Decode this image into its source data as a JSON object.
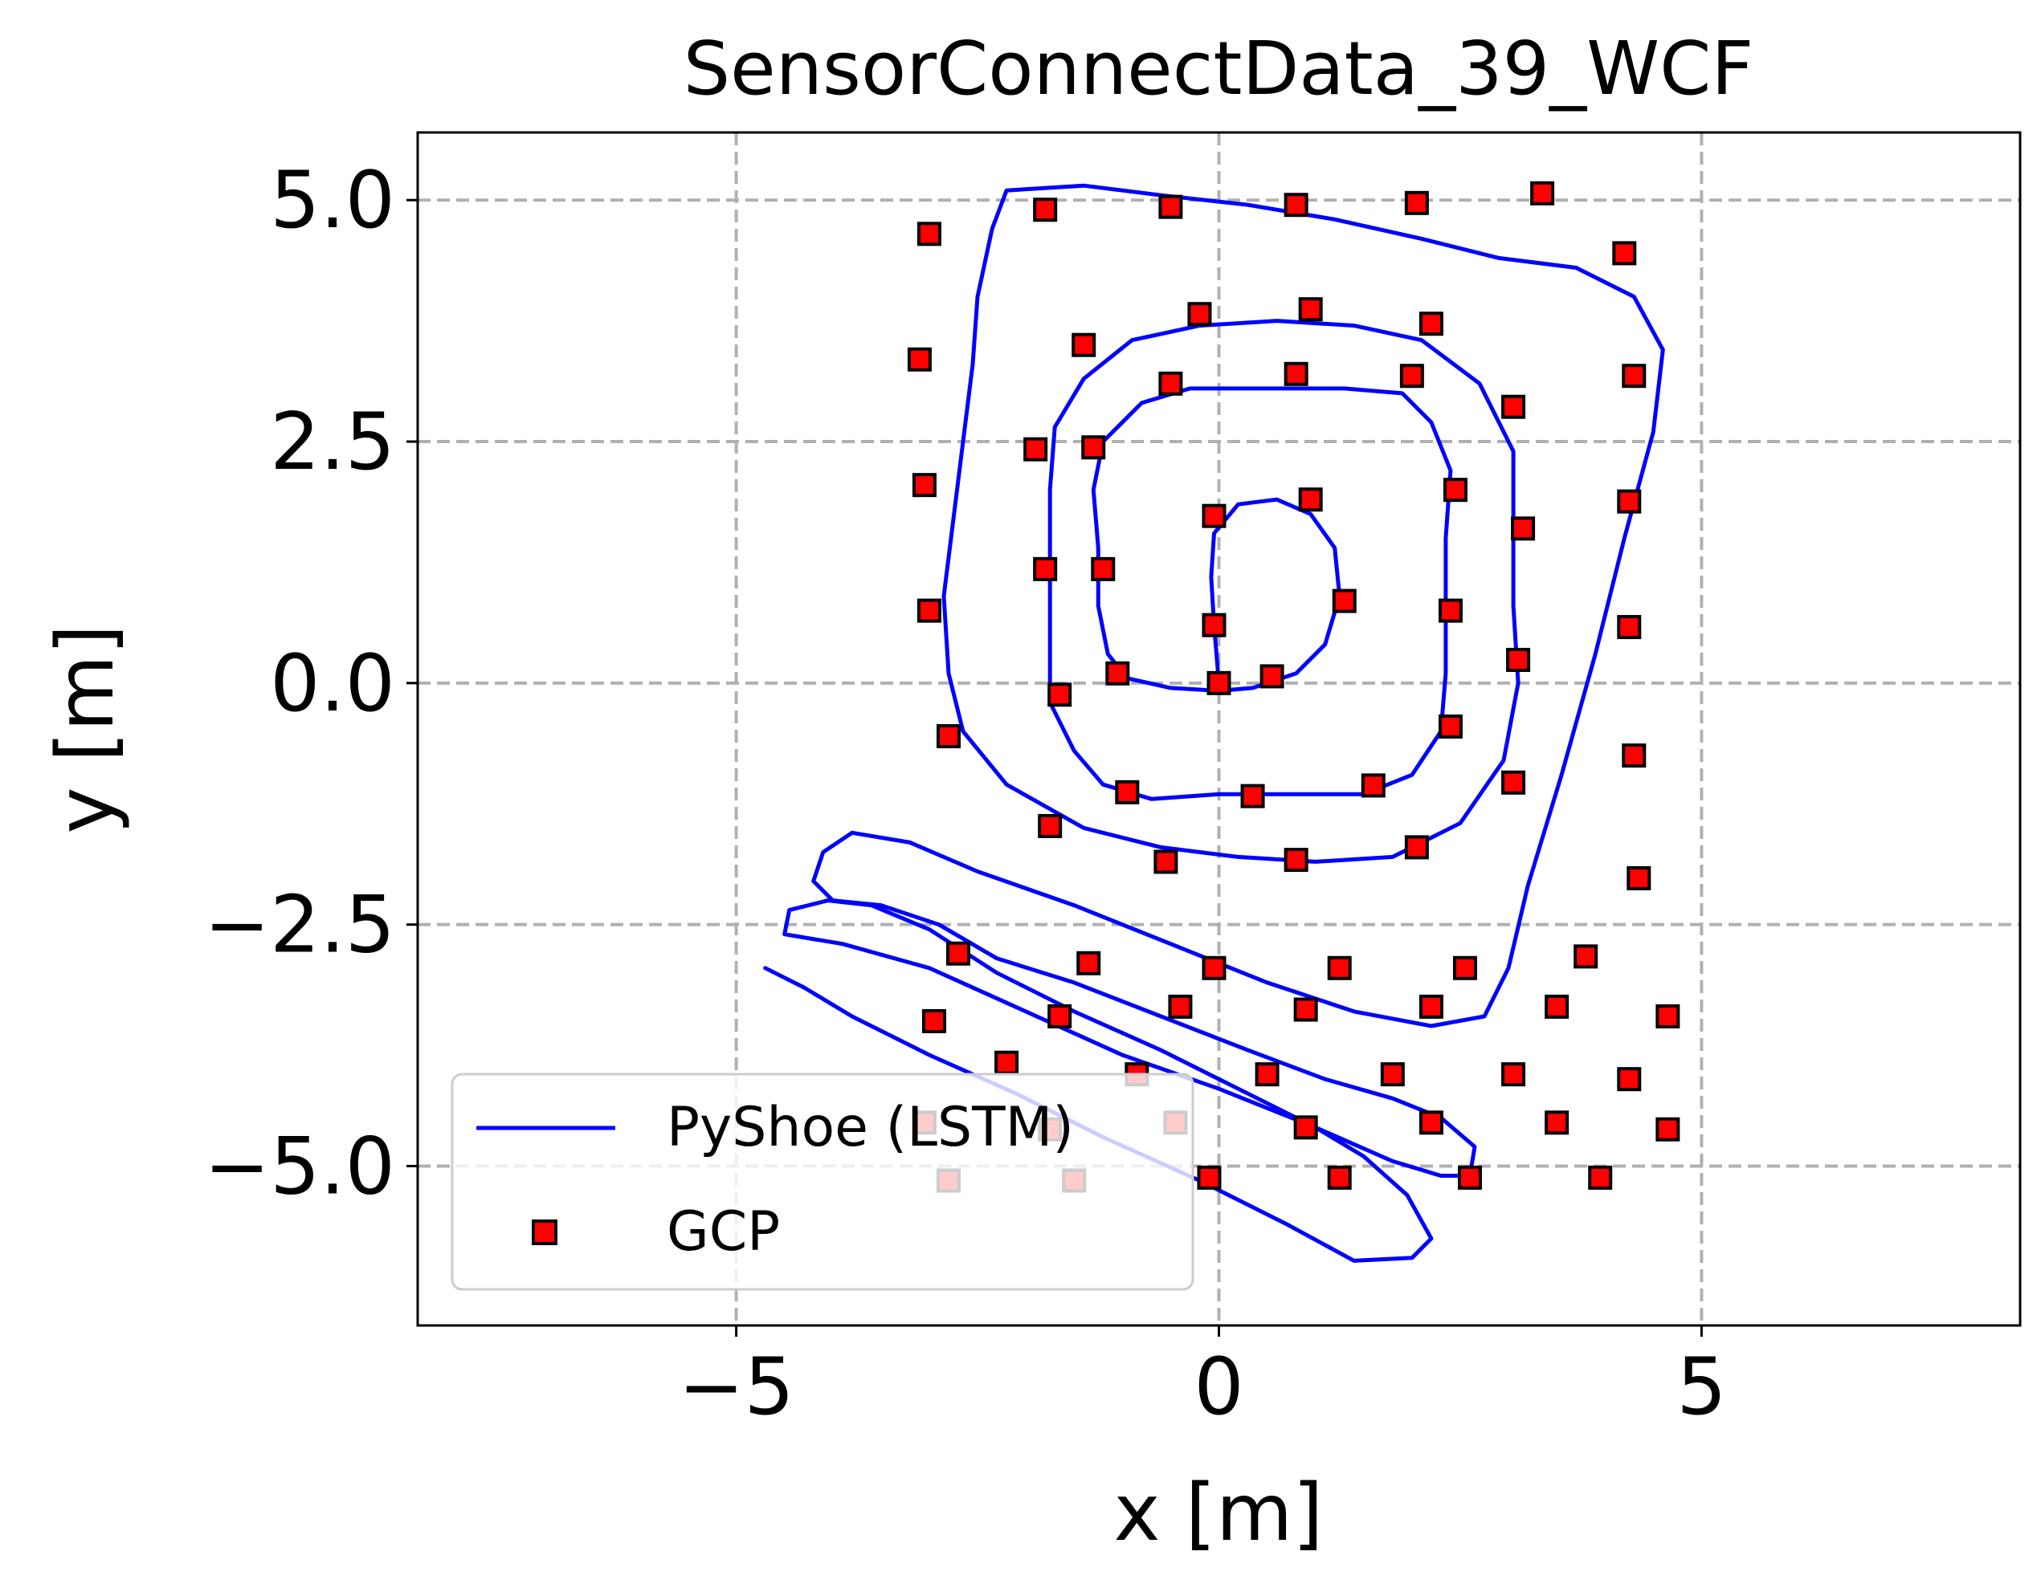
{
  "chart_data": {
    "type": "scatter",
    "title": "SensorConnectData_39_WCF",
    "xlabel": "x [m]",
    "ylabel": "y [m]",
    "xlim": [
      -8.3,
      8.3
    ],
    "ylim": [
      -6.65,
      5.7
    ],
    "x_ticks": [
      -5,
      0,
      5
    ],
    "x_tick_labels": [
      "−5",
      "0",
      "5"
    ],
    "y_ticks": [
      -5.0,
      -2.5,
      0.0,
      2.5,
      5.0
    ],
    "y_tick_labels": [
      "−5.0",
      "−2.5",
      "0.0",
      "2.5",
      "5.0"
    ],
    "grid": true,
    "legend_position": "lower-left",
    "legend": [
      "PyShoe (LSTM)",
      "GCP"
    ],
    "colors": {
      "line": "#0000ff",
      "marker_fill": "#ff0000",
      "marker_edge": "#000000",
      "grid": "#b0b0b0"
    },
    "series": [
      {
        "name": "PyShoe (LSTM)",
        "kind": "line",
        "points": [
          [
            0.0,
            0.0
          ],
          [
            -0.05,
            0.6
          ],
          [
            -0.08,
            1.1
          ],
          [
            -0.05,
            1.55
          ],
          [
            0.2,
            1.85
          ],
          [
            0.6,
            1.9
          ],
          [
            0.95,
            1.75
          ],
          [
            1.2,
            1.4
          ],
          [
            1.25,
            0.9
          ],
          [
            1.1,
            0.4
          ],
          [
            0.8,
            0.1
          ],
          [
            0.35,
            -0.05
          ],
          [
            0.0,
            -0.08
          ],
          [
            -0.5,
            -0.05
          ],
          [
            -0.95,
            0.05
          ],
          [
            -1.15,
            0.3
          ],
          [
            -1.25,
            0.8
          ],
          [
            -1.25,
            1.4
          ],
          [
            -1.3,
            2.0
          ],
          [
            -1.2,
            2.5
          ],
          [
            -0.8,
            2.9
          ],
          [
            -0.3,
            3.05
          ],
          [
            0.5,
            3.05
          ],
          [
            1.3,
            3.05
          ],
          [
            1.9,
            3.0
          ],
          [
            2.2,
            2.7
          ],
          [
            2.4,
            2.2
          ],
          [
            2.35,
            1.5
          ],
          [
            2.35,
            0.8
          ],
          [
            2.35,
            0.1
          ],
          [
            2.3,
            -0.5
          ],
          [
            2.0,
            -0.95
          ],
          [
            1.5,
            -1.15
          ],
          [
            0.8,
            -1.15
          ],
          [
            0.0,
            -1.15
          ],
          [
            -0.7,
            -1.2
          ],
          [
            -1.2,
            -1.05
          ],
          [
            -1.5,
            -0.7
          ],
          [
            -1.75,
            -0.2
          ],
          [
            -1.75,
            0.5
          ],
          [
            -1.75,
            1.2
          ],
          [
            -1.75,
            2.0
          ],
          [
            -1.7,
            2.65
          ],
          [
            -1.4,
            3.15
          ],
          [
            -0.9,
            3.55
          ],
          [
            -0.2,
            3.7
          ],
          [
            0.6,
            3.75
          ],
          [
            1.4,
            3.7
          ],
          [
            2.1,
            3.55
          ],
          [
            2.7,
            3.1
          ],
          [
            3.05,
            2.4
          ],
          [
            3.05,
            1.6
          ],
          [
            3.05,
            0.8
          ],
          [
            3.1,
            0.0
          ],
          [
            2.95,
            -0.8
          ],
          [
            2.5,
            -1.45
          ],
          [
            1.8,
            -1.8
          ],
          [
            1.0,
            -1.85
          ],
          [
            0.2,
            -1.8
          ],
          [
            -0.6,
            -1.7
          ],
          [
            -1.4,
            -1.5
          ],
          [
            -2.2,
            -1.05
          ],
          [
            -2.65,
            -0.5
          ],
          [
            -2.8,
            0.1
          ],
          [
            -2.85,
            0.9
          ],
          [
            -2.75,
            1.7
          ],
          [
            -2.65,
            2.5
          ],
          [
            -2.55,
            3.3
          ],
          [
            -2.5,
            4.0
          ],
          [
            -2.35,
            4.7
          ],
          [
            -2.2,
            5.1
          ],
          [
            -1.4,
            5.15
          ],
          [
            -0.6,
            5.05
          ],
          [
            0.3,
            4.95
          ],
          [
            1.2,
            4.8
          ],
          [
            2.1,
            4.6
          ],
          [
            2.9,
            4.4
          ],
          [
            3.7,
            4.3
          ],
          [
            4.3,
            4.0
          ],
          [
            4.6,
            3.45
          ],
          [
            4.5,
            2.6
          ],
          [
            4.2,
            1.5
          ],
          [
            3.9,
            0.3
          ],
          [
            3.55,
            -0.95
          ],
          [
            3.2,
            -2.1
          ],
          [
            3.0,
            -2.95
          ],
          [
            2.75,
            -3.45
          ],
          [
            2.2,
            -3.55
          ],
          [
            1.4,
            -3.4
          ],
          [
            0.5,
            -3.1
          ],
          [
            -0.5,
            -2.7
          ],
          [
            -1.5,
            -2.3
          ],
          [
            -2.5,
            -1.95
          ],
          [
            -3.2,
            -1.65
          ],
          [
            -3.8,
            -1.55
          ],
          [
            -4.1,
            -1.75
          ],
          [
            -4.2,
            -2.05
          ],
          [
            -4.0,
            -2.25
          ],
          [
            -3.5,
            -2.3
          ],
          [
            -2.9,
            -2.5
          ],
          [
            -2.3,
            -2.85
          ],
          [
            -1.5,
            -3.1
          ],
          [
            -0.6,
            -3.45
          ],
          [
            0.3,
            -3.8
          ],
          [
            1.1,
            -4.1
          ],
          [
            1.8,
            -4.3
          ],
          [
            2.3,
            -4.5
          ],
          [
            2.65,
            -4.8
          ],
          [
            2.6,
            -5.1
          ],
          [
            2.3,
            -5.1
          ],
          [
            1.8,
            -4.95
          ],
          [
            1.0,
            -4.6
          ],
          [
            0.0,
            -4.2
          ],
          [
            -1.0,
            -3.85
          ],
          [
            -2.0,
            -3.4
          ],
          [
            -3.0,
            -2.95
          ],
          [
            -3.9,
            -2.7
          ],
          [
            -4.5,
            -2.6
          ],
          [
            -4.45,
            -2.35
          ],
          [
            -4.05,
            -2.25
          ],
          [
            -3.6,
            -2.3
          ],
          [
            -3.0,
            -2.55
          ],
          [
            -2.3,
            -3.0
          ],
          [
            -1.5,
            -3.4
          ],
          [
            -0.6,
            -3.8
          ],
          [
            0.3,
            -4.25
          ],
          [
            1.0,
            -4.6
          ],
          [
            1.5,
            -4.9
          ],
          [
            1.95,
            -5.3
          ],
          [
            2.2,
            -5.75
          ],
          [
            2.0,
            -5.95
          ],
          [
            1.4,
            -5.98
          ],
          [
            0.7,
            -5.6
          ],
          [
            -0.2,
            -5.15
          ],
          [
            -1.2,
            -4.7
          ],
          [
            -2.1,
            -4.25
          ],
          [
            -3.0,
            -3.85
          ],
          [
            -3.8,
            -3.45
          ],
          [
            -4.3,
            -3.15
          ],
          [
            -4.7,
            -2.95
          ]
        ]
      },
      {
        "name": "GCP",
        "kind": "scatter",
        "points": [
          [
            -3.0,
            4.65
          ],
          [
            -1.8,
            4.9
          ],
          [
            -0.5,
            4.93
          ],
          [
            0.8,
            4.95
          ],
          [
            2.05,
            4.97
          ],
          [
            3.35,
            5.07
          ],
          [
            4.2,
            4.45
          ],
          [
            4.3,
            3.18
          ],
          [
            4.25,
            1.88
          ],
          [
            4.25,
            0.58
          ],
          [
            4.3,
            -0.75
          ],
          [
            4.35,
            -2.02
          ],
          [
            4.65,
            -3.45
          ],
          [
            4.65,
            -4.62
          ],
          [
            3.95,
            -5.12
          ],
          [
            2.6,
            -5.12
          ],
          [
            1.25,
            -5.12
          ],
          [
            -0.1,
            -5.12
          ],
          [
            -1.5,
            -5.15
          ],
          [
            -2.8,
            -5.15
          ],
          [
            -3.1,
            3.35
          ],
          [
            -3.05,
            2.05
          ],
          [
            -3.0,
            0.75
          ],
          [
            -2.8,
            -0.55
          ],
          [
            -1.75,
            -1.48
          ],
          [
            -0.55,
            -1.85
          ],
          [
            0.8,
            -1.83
          ],
          [
            2.05,
            -1.7
          ],
          [
            3.05,
            -1.03
          ],
          [
            3.1,
            0.24
          ],
          [
            3.15,
            1.6
          ],
          [
            3.05,
            2.86
          ],
          [
            2.2,
            3.72
          ],
          [
            0.95,
            3.87
          ],
          [
            -0.2,
            3.82
          ],
          [
            -1.4,
            3.5
          ],
          [
            -1.3,
            2.44
          ],
          [
            -1.2,
            1.18
          ],
          [
            -1.05,
            0.1
          ],
          [
            -0.95,
            -1.13
          ],
          [
            0.35,
            -1.17
          ],
          [
            1.6,
            -1.06
          ],
          [
            2.4,
            -0.45
          ],
          [
            2.4,
            0.75
          ],
          [
            2.45,
            2.0
          ],
          [
            2.0,
            3.18
          ],
          [
            0.8,
            3.2
          ],
          [
            -0.5,
            3.1
          ],
          [
            -1.65,
            -0.12
          ],
          [
            -1.8,
            1.18
          ],
          [
            -1.9,
            2.42
          ],
          [
            -0.05,
            1.73
          ],
          [
            0.95,
            1.9
          ],
          [
            1.3,
            0.85
          ],
          [
            0.55,
            0.07
          ],
          [
            0.0,
            0.0
          ],
          [
            -0.05,
            0.6
          ],
          [
            -2.7,
            -2.8
          ],
          [
            -1.35,
            -2.9
          ],
          [
            -0.05,
            -2.95
          ],
          [
            1.25,
            -2.95
          ],
          [
            2.55,
            -2.95
          ],
          [
            3.8,
            -2.83
          ],
          [
            3.5,
            -3.35
          ],
          [
            2.2,
            -3.35
          ],
          [
            0.9,
            -3.38
          ],
          [
            -0.4,
            -3.35
          ],
          [
            -1.65,
            -3.45
          ],
          [
            -2.95,
            -3.5
          ],
          [
            -2.2,
            -3.93
          ],
          [
            -0.85,
            -4.05
          ],
          [
            0.5,
            -4.05
          ],
          [
            1.8,
            -4.05
          ],
          [
            3.05,
            -4.05
          ],
          [
            4.25,
            -4.1
          ],
          [
            3.5,
            -4.55
          ],
          [
            2.2,
            -4.55
          ],
          [
            0.9,
            -4.6
          ],
          [
            -0.45,
            -4.55
          ],
          [
            -1.75,
            -4.62
          ],
          [
            -3.05,
            -4.55
          ]
        ]
      }
    ]
  }
}
